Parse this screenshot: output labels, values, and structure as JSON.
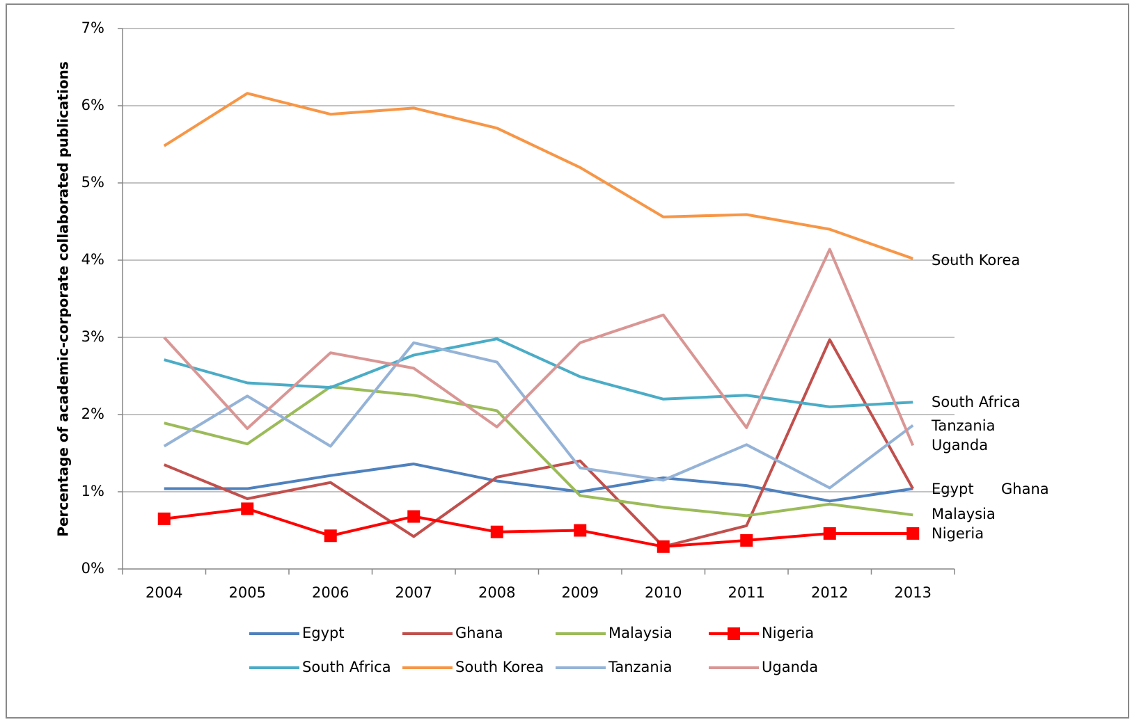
{
  "chart_data": {
    "type": "line",
    "y_axis_label": "Percentage of academic-corporate collaborated publications",
    "categories": [
      "2004",
      "2005",
      "2006",
      "2007",
      "2008",
      "2009",
      "2010",
      "2011",
      "2012",
      "2013"
    ],
    "ylim": [
      0,
      7
    ],
    "yticks": [
      {
        "value": 0,
        "label": "0%"
      },
      {
        "value": 1,
        "label": "1%"
      },
      {
        "value": 2,
        "label": "2%"
      },
      {
        "value": 3,
        "label": "3%"
      },
      {
        "value": 4,
        "label": "4%"
      },
      {
        "value": 5,
        "label": "5%"
      },
      {
        "value": 6,
        "label": "6%"
      },
      {
        "value": 7,
        "label": "7%"
      }
    ],
    "grid": true,
    "legend": "bottom",
    "series": [
      {
        "name": "Egypt",
        "color": "#4f81bd",
        "values": [
          1.04,
          1.04,
          1.21,
          1.36,
          1.14,
          1.0,
          1.18,
          1.08,
          0.88,
          1.04
        ]
      },
      {
        "name": "Ghana",
        "color": "#c0504d",
        "values": [
          1.35,
          0.91,
          1.12,
          0.42,
          1.19,
          1.4,
          0.29,
          0.56,
          2.97,
          1.04
        ]
      },
      {
        "name": "Malaysia",
        "color": "#9bbb59",
        "values": [
          1.89,
          1.62,
          2.36,
          2.25,
          2.05,
          0.95,
          0.8,
          0.69,
          0.84,
          0.7
        ]
      },
      {
        "name": "Nigeria",
        "color": "#ff0000",
        "marker": "square",
        "values": [
          0.65,
          0.78,
          0.43,
          0.68,
          0.48,
          0.5,
          0.29,
          0.37,
          0.46,
          0.46
        ]
      },
      {
        "name": "South Africa",
        "color": "#4bacc6",
        "values": [
          2.71,
          2.41,
          2.35,
          2.77,
          2.98,
          2.49,
          2.2,
          2.25,
          2.1,
          2.16
        ]
      },
      {
        "name": "South Korea",
        "color": "#f79646",
        "values": [
          5.48,
          6.16,
          5.89,
          5.97,
          5.71,
          5.2,
          4.56,
          4.59,
          4.4,
          4.02
        ]
      },
      {
        "name": "Tanzania",
        "color": "#95b3d7",
        "values": [
          1.59,
          2.24,
          1.59,
          2.93,
          2.68,
          1.31,
          1.15,
          1.61,
          1.05,
          1.86
        ]
      },
      {
        "name": "Uganda",
        "color": "#d99694",
        "values": [
          3.0,
          1.82,
          2.8,
          2.6,
          1.84,
          2.93,
          3.29,
          1.83,
          4.14,
          1.6
        ]
      }
    ]
  }
}
